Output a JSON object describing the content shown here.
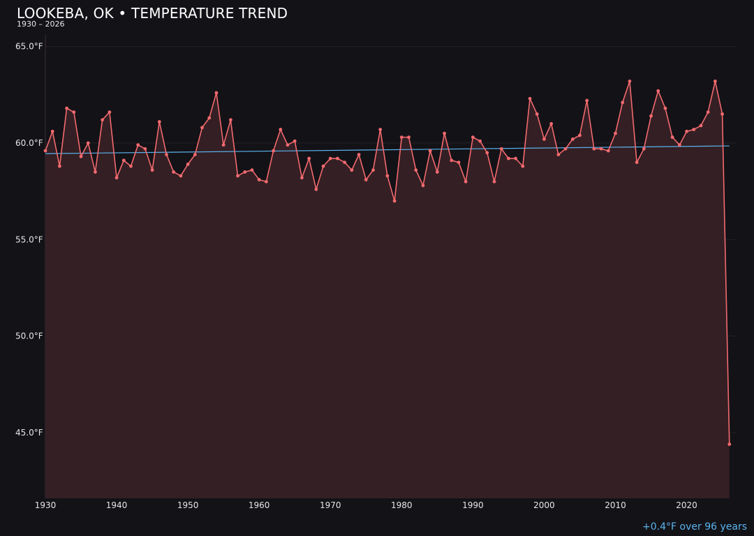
{
  "title": "LOOKEBA, OK • TEMPERATURE TREND",
  "subtitle": "1930 – 2026",
  "trend_note": "+0.4°F over 96 years",
  "colors": {
    "background": "#131217",
    "line": "#f26a6e",
    "fill": "#341f24",
    "trend": "#5ab4ee",
    "grid": "#2a2228"
  },
  "chart_data": {
    "type": "line",
    "title": "LOOKEBA, OK • TEMPERATURE TREND",
    "subtitle": "1930 – 2026",
    "xlabel": "",
    "ylabel": "",
    "xlim": [
      1930,
      2027
    ],
    "ylim": [
      41.6,
      65.6
    ],
    "x_ticks": [
      1930,
      1940,
      1950,
      1960,
      1970,
      1980,
      1990,
      2000,
      2010,
      2020
    ],
    "y_ticks": [
      45,
      50,
      55,
      60,
      65
    ],
    "y_tick_labels": [
      "45.0°F",
      "50.0°F",
      "55.0°F",
      "60.0°F",
      "65.0°F"
    ],
    "grid": true,
    "series": [
      {
        "style": "line-with-markers-and-area",
        "x": [
          1930,
          1931,
          1932,
          1933,
          1934,
          1935,
          1936,
          1937,
          1938,
          1939,
          1940,
          1941,
          1942,
          1943,
          1944,
          1945,
          1946,
          1947,
          1948,
          1949,
          1950,
          1951,
          1952,
          1953,
          1954,
          1955,
          1956,
          1957,
          1958,
          1959,
          1960,
          1961,
          1962,
          1963,
          1964,
          1965,
          1966,
          1967,
          1968,
          1969,
          1970,
          1971,
          1972,
          1973,
          1974,
          1975,
          1976,
          1977,
          1978,
          1979,
          1980,
          1981,
          1982,
          1983,
          1984,
          1985,
          1986,
          1987,
          1988,
          1989,
          1990,
          1991,
          1992,
          1993,
          1994,
          1995,
          1996,
          1997,
          1998,
          1999,
          2000,
          2001,
          2002,
          2003,
          2004,
          2005,
          2006,
          2007,
          2008,
          2009,
          2010,
          2011,
          2012,
          2013,
          2014,
          2015,
          2016,
          2017,
          2018,
          2019,
          2020,
          2021,
          2022,
          2023,
          2024,
          2025,
          2026
        ],
        "values": [
          59.6,
          60.6,
          58.8,
          61.8,
          61.6,
          59.3,
          60.0,
          58.5,
          61.2,
          61.6,
          58.2,
          59.1,
          58.8,
          59.9,
          59.7,
          58.6,
          61.1,
          59.4,
          58.5,
          58.3,
          58.9,
          59.4,
          60.8,
          61.3,
          62.6,
          59.9,
          61.2,
          58.3,
          58.5,
          58.6,
          58.1,
          58.0,
          59.6,
          60.7,
          59.9,
          60.1,
          58.2,
          59.2,
          57.6,
          58.8,
          59.2,
          59.2,
          59.0,
          58.6,
          59.4,
          58.1,
          58.6,
          60.7,
          58.3,
          57.0,
          60.3,
          60.3,
          58.6,
          57.8,
          59.6,
          58.5,
          60.5,
          59.1,
          59.0,
          58.0,
          60.3,
          60.1,
          59.5,
          58.0,
          59.7,
          59.2,
          59.2,
          58.8,
          62.3,
          61.5,
          60.2,
          61.0,
          59.4,
          59.7,
          60.2,
          60.4,
          62.2,
          59.7,
          59.7,
          59.6,
          60.5,
          62.1,
          63.2,
          59.0,
          59.7,
          61.4,
          62.7,
          61.8,
          60.3,
          59.9,
          60.6,
          60.7,
          60.9,
          61.6,
          63.2,
          61.5,
          44.4
        ]
      },
      {
        "style": "trend-line",
        "x": [
          1930,
          2026
        ],
        "values": [
          59.45,
          59.85
        ]
      }
    ]
  }
}
